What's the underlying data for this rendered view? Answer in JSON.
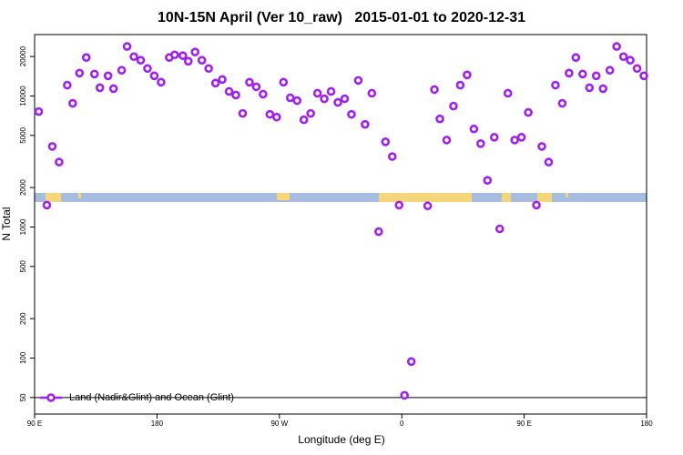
{
  "chart_data": {
    "type": "scatter",
    "title": "10N-15N April (Ver 10_raw)   2015-01-01 to 2020-12-31",
    "x_label": "Longitude (deg E)",
    "y_label": "N Total",
    "log_y": true,
    "legend": "bottomleft",
    "hline": 50,
    "xlim": [
      90,
      540
    ],
    "xticks": [
      {
        "value": 90,
        "label": "90 E"
      },
      180,
      {
        "value": 270,
        "label": "90 W"
      },
      {
        "value": 360,
        "label": "0"
      },
      {
        "value": 450,
        "label": "90 E"
      },
      {
        "value": 540,
        "label": "180"
      }
    ],
    "ylim": [
      37.4,
      29400
    ],
    "yticks": [
      50,
      100,
      200,
      500,
      1000,
      2000,
      5000,
      10000,
      20000
    ],
    "series": [
      {
        "name": "Land (Nadir&Glint) and Ocean (Glint)",
        "color": "#a020f0",
        "x": [
          93,
          99,
          103,
          108,
          114,
          118,
          123,
          128,
          134,
          138,
          144,
          148,
          154,
          158,
          163,
          168,
          173,
          178,
          183,
          189,
          193,
          199,
          203,
          208,
          213,
          218,
          223,
          228,
          233,
          238,
          243,
          248,
          253,
          258,
          263,
          268,
          273,
          278,
          283,
          288,
          293,
          298,
          303,
          308,
          313,
          318,
          323,
          328,
          333,
          338,
          343,
          348,
          353,
          358,
          362,
          367,
          379,
          384,
          388,
          393,
          398,
          403,
          408,
          413,
          418,
          423,
          428,
          432,
          438,
          443,
          448,
          453,
          459,
          463,
          468,
          473,
          478,
          483,
          488,
          493,
          498,
          503,
          508,
          513,
          518,
          523,
          528,
          533,
          538
        ],
        "values": [
          7600,
          1470,
          4120,
          3130,
          12100,
          8790,
          14950,
          19650,
          14700,
          11550,
          14250,
          11370,
          15700,
          23850,
          19950,
          18720,
          16200,
          14250,
          12730,
          19650,
          20600,
          20300,
          18400,
          21650,
          18720,
          16200,
          12530,
          13360,
          10830,
          10160,
          7360,
          12730,
          11740,
          10320,
          7240,
          6900,
          12730,
          9680,
          9220,
          6580,
          7360,
          10490,
          9520,
          10830,
          8930,
          9520,
          7240,
          13140,
          6070,
          10490,
          922,
          4470,
          3450,
          1470,
          52,
          94,
          1450,
          11190,
          6680,
          4610,
          8370,
          12100,
          14480,
          5600,
          4330,
          2270,
          4840,
          968,
          10490,
          4610,
          4840,
          7480,
          1470,
          4120,
          3130,
          12100,
          8790,
          14950,
          19650,
          14700,
          11550,
          14250,
          11370,
          15700,
          23850,
          19950,
          18720,
          16200,
          14250
        ]
      }
    ]
  }
}
